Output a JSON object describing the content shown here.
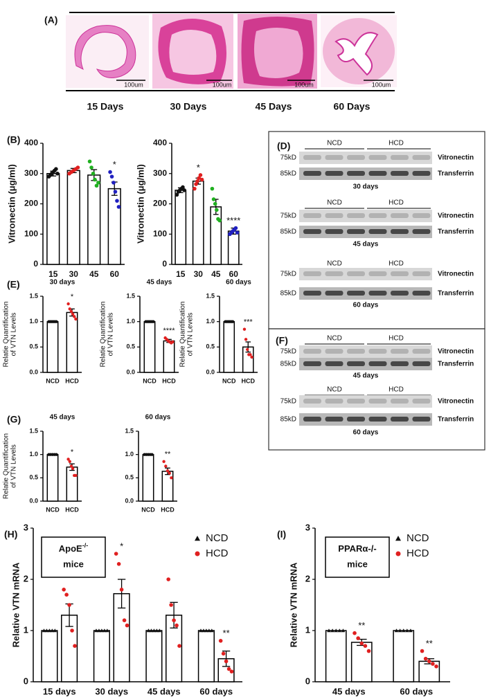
{
  "panel_a": {
    "label": "(A)",
    "captions": [
      "15 Days",
      "30 Days",
      "45 Days",
      "60 Days"
    ],
    "scale_bars": [
      "100um",
      "100um",
      "100um",
      "100um"
    ]
  },
  "panel_d": {
    "label": "(D)",
    "blocks": [
      {
        "groups": [
          "NCD",
          "HCD"
        ],
        "kd": [
          "75kD",
          "85kD"
        ],
        "bands": [
          "Vitronectin",
          "Transferrin"
        ],
        "caption": "30 days"
      },
      {
        "groups": [
          "NCD",
          "HCD"
        ],
        "kd": [
          "75kD",
          "85kD"
        ],
        "bands": [
          "Vitronectin",
          "Transferrin"
        ],
        "caption": "45 days"
      },
      {
        "groups": [
          "NCD",
          "HCD"
        ],
        "kd": [
          "75kD",
          "85kD"
        ],
        "bands": [
          "Vitronectin",
          "Transferrin"
        ],
        "caption": "60 days"
      }
    ]
  },
  "panel_f": {
    "label": "(F)",
    "blocks": [
      {
        "groups": [
          "NCD",
          "HCD"
        ],
        "kd": [
          "75kD",
          "85kD"
        ],
        "bands": [
          "Vitronectin",
          "Transferrin"
        ],
        "caption": "45 days"
      },
      {
        "groups": [
          "NCD",
          "HCD"
        ],
        "kd": [
          "75kD",
          "85kD"
        ],
        "bands": [
          "Vitronectin",
          "Transferrin"
        ],
        "caption": "60 days"
      }
    ]
  },
  "chart_data": [
    {
      "type": "bar",
      "panel": "(B)",
      "ylabel": [
        "Vitronectin (μg/ml)"
      ],
      "categories": [
        "15",
        "30",
        "45",
        "60"
      ],
      "values": [
        300,
        310,
        295,
        250
      ],
      "errors": [
        8,
        7,
        18,
        22
      ],
      "points": [
        [
          290,
          295,
          300,
          305,
          310,
          315,
          300
        ],
        [
          300,
          305,
          310,
          315,
          320
        ],
        [
          340,
          320,
          300,
          280,
          260,
          270
        ],
        [
          305,
          290,
          270,
          240,
          210,
          190
        ]
      ],
      "point_colors": [
        "#111111",
        "#e02020",
        "#20b020",
        "#2020c0"
      ],
      "annotations": [
        null,
        null,
        null,
        "*"
      ],
      "ylim": [
        0,
        400
      ],
      "yticks": [
        0,
        100,
        200,
        300,
        400
      ]
    },
    {
      "type": "bar",
      "ylabel": [
        "Vitronectin (μg/ml)"
      ],
      "categories": [
        "15",
        "30",
        "45",
        "60"
      ],
      "values": [
        245,
        275,
        190,
        110
      ],
      "errors": [
        8,
        10,
        25,
        10
      ],
      "points": [
        [
          230,
          240,
          245,
          250,
          255,
          245
        ],
        [
          250,
          265,
          275,
          285,
          295,
          280
        ],
        [
          250,
          215,
          200,
          180,
          150,
          145
        ],
        [
          100,
          105,
          110,
          115,
          120,
          105
        ]
      ],
      "point_colors": [
        "#111111",
        "#e02020",
        "#20b020",
        "#2020c0"
      ],
      "annotations": [
        null,
        "*",
        null,
        "****"
      ],
      "ylim": [
        0,
        400
      ],
      "yticks": [
        0,
        100,
        200,
        300,
        400
      ]
    },
    {
      "type": "bar",
      "panel": "(E)",
      "title": "30 days",
      "ylabel": [
        "Relatie Quantification",
        "of VTN Levels"
      ],
      "categories": [
        "NCD",
        "HCD"
      ],
      "values": [
        1,
        1.18
      ],
      "errors": [
        0,
        0.07
      ],
      "points": [
        [
          1,
          1,
          1,
          1,
          1,
          1
        ],
        [
          1.35,
          1.25,
          1.2,
          1.15,
          1.1,
          1.05
        ]
      ],
      "point_colors": [
        "#111111",
        "#e02020"
      ],
      "annotations": [
        null,
        "*"
      ],
      "ylim": [
        0,
        1.5
      ],
      "yticks": [
        {
          "value": 0,
          "label": "0.0"
        },
        {
          "value": 0.5,
          "label": "0.5"
        },
        {
          "value": 1,
          "label": "1.0"
        },
        {
          "value": 1.5,
          "label": "1.5"
        }
      ]
    },
    {
      "type": "bar",
      "title": "45 days",
      "ylabel": [
        "Relatie Quantification",
        "of VTN Levels"
      ],
      "categories": [
        "NCD",
        "HCD"
      ],
      "values": [
        1,
        0.62
      ],
      "errors": [
        0,
        0.03
      ],
      "points": [
        [
          1,
          1,
          1,
          1,
          1,
          1
        ],
        [
          0.68,
          0.65,
          0.62,
          0.6,
          0.58,
          0.6
        ]
      ],
      "point_colors": [
        "#111111",
        "#e02020"
      ],
      "annotations": [
        null,
        "****"
      ],
      "ylim": [
        0,
        1.5
      ],
      "yticks": [
        {
          "value": 0,
          "label": "0.0"
        },
        {
          "value": 0.5,
          "label": "0.5"
        },
        {
          "value": 1,
          "label": "1.0"
        },
        {
          "value": 1.5,
          "label": "1.5"
        }
      ]
    },
    {
      "type": "bar",
      "title": "60 days",
      "ylabel": [
        "Relatie Quantification",
        "of VTN Levels"
      ],
      "categories": [
        "NCD",
        "HCD"
      ],
      "values": [
        1,
        0.5
      ],
      "errors": [
        0,
        0.1
      ],
      "points": [
        [
          1,
          1,
          1,
          1,
          1,
          1
        ],
        [
          0.85,
          0.65,
          0.45,
          0.35,
          0.35,
          0.3
        ]
      ],
      "point_colors": [
        "#111111",
        "#e02020"
      ],
      "annotations": [
        null,
        "***"
      ],
      "ylim": [
        0,
        1.5
      ],
      "yticks": [
        {
          "value": 0,
          "label": "0.0"
        },
        {
          "value": 0.5,
          "label": "0.5"
        },
        {
          "value": 1,
          "label": "1.0"
        },
        {
          "value": 1.5,
          "label": "1.5"
        }
      ]
    },
    {
      "type": "bar",
      "panel": "(G)",
      "title": "45 days",
      "ylabel": [
        "Relatie Quantification",
        "of VTN Levels"
      ],
      "categories": [
        "NCD",
        "HCD"
      ],
      "values": [
        1,
        0.73
      ],
      "errors": [
        0,
        0.07
      ],
      "points": [
        [
          1,
          1,
          1,
          1,
          1
        ],
        [
          0.9,
          0.85,
          0.75,
          0.7,
          0.55,
          0.55
        ]
      ],
      "point_colors": [
        "#111111",
        "#e02020"
      ],
      "annotations": [
        null,
        "*"
      ],
      "ylim": [
        0,
        1.5
      ],
      "yticks": [
        {
          "value": 0,
          "label": "0.0"
        },
        {
          "value": 0.5,
          "label": "0.5"
        },
        {
          "value": 1,
          "label": "1.0"
        },
        {
          "value": 1.5,
          "label": "1.5"
        }
      ]
    },
    {
      "type": "bar",
      "title": "60 days",
      "categories": [
        "NCD",
        "HCD"
      ],
      "values": [
        1,
        0.64
      ],
      "errors": [
        0,
        0.07
      ],
      "points": [
        [
          1,
          1,
          1,
          1,
          1
        ],
        [
          0.85,
          0.75,
          0.65,
          0.6,
          0.5
        ]
      ],
      "point_colors": [
        "#111111",
        "#e02020"
      ],
      "annotations": [
        null,
        "**"
      ],
      "ylim": [
        0,
        1.5
      ],
      "yticks": [
        {
          "value": 0,
          "label": "0.0"
        },
        {
          "value": 0.5,
          "label": "0.5"
        },
        {
          "value": 1,
          "label": "1.0"
        },
        {
          "value": 1.5,
          "label": "1.5"
        }
      ]
    },
    {
      "type": "grouped_bar",
      "panel": "(H)",
      "ylabel": [
        "Relative VTN mRNA"
      ],
      "box_label": {
        "text": "ApoE",
        "superscript": "-/-",
        "line2": "mice"
      },
      "categories": [
        "15 days",
        "30 days",
        "45 days",
        "60 days"
      ],
      "series": [
        {
          "name": "NCD",
          "color": "#111111",
          "marker": "triangle",
          "values": [
            1,
            1,
            1,
            1
          ],
          "points": [
            [
              1,
              1,
              1,
              1,
              1
            ],
            [
              1,
              1,
              1,
              1,
              1
            ],
            [
              1,
              1,
              1,
              1,
              1
            ],
            [
              1,
              1,
              1,
              1,
              1
            ]
          ]
        },
        {
          "name": "HCD",
          "color": "#e02020",
          "marker": "circle",
          "values": [
            1.3,
            1.72,
            1.3,
            0.45
          ],
          "errors": [
            0.22,
            0.28,
            0.25,
            0.15
          ],
          "points": [
            [
              1.8,
              1.7,
              1.5,
              1,
              0.7
            ],
            [
              2.5,
              2.3,
              1.8,
              1.2,
              1.1
            ],
            [
              2,
              1.5,
              1.2,
              1.1,
              0.7
            ],
            [
              0.8,
              0.55,
              0.4,
              0.25,
              0.2
            ]
          ],
          "annotations": [
            null,
            "*",
            null,
            "**"
          ]
        }
      ],
      "ylim": [
        0,
        3
      ],
      "yticks": [
        0,
        1,
        2,
        3
      ]
    },
    {
      "type": "grouped_bar",
      "panel": "(I)",
      "ylabel": [
        "Relative VTN mRNA"
      ],
      "box_label": {
        "text": "PPARα-/-",
        "line2": "mice"
      },
      "categories": [
        "45 days",
        "60 days"
      ],
      "series": [
        {
          "name": "NCD",
          "color": "#111111",
          "marker": "triangle",
          "values": [
            1,
            1
          ],
          "points": [
            [
              1,
              1,
              1,
              1,
              1
            ],
            [
              1,
              1,
              1,
              1,
              1
            ]
          ]
        },
        {
          "name": "HCD",
          "color": "#e02020",
          "marker": "circle",
          "values": [
            0.77,
            0.4
          ],
          "errors": [
            0.06,
            0.05
          ],
          "points": [
            [
              0.95,
              0.85,
              0.75,
              0.7,
              0.6
            ],
            [
              0.6,
              0.45,
              0.4,
              0.35,
              0.3
            ]
          ],
          "annotations": [
            "**",
            "**"
          ]
        }
      ],
      "ylim": [
        0,
        3
      ],
      "yticks": [
        0,
        1,
        2,
        3
      ]
    }
  ]
}
